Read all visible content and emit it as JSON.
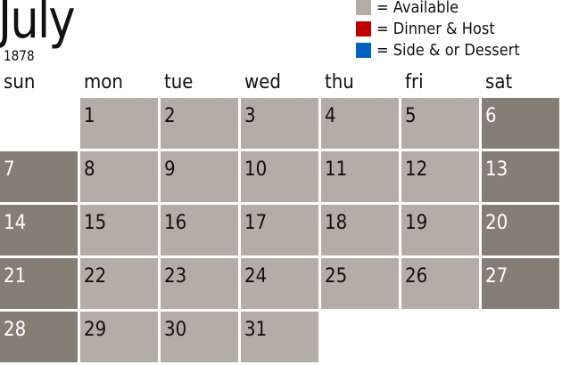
{
  "title": {
    "month": "July",
    "year": "1878"
  },
  "colors": {
    "available": "#b4ada5",
    "weekend": "#857e75",
    "dinner_host": "#c00000",
    "side_dessert": "#0060c0"
  },
  "legend": [
    {
      "label": "= Available",
      "color": "#b4ada5"
    },
    {
      "label": "= Dinner & Host",
      "color": "#c00000"
    },
    {
      "label": "= Side & or Dessert",
      "color": "#0060c0"
    }
  ],
  "weekdays": [
    "sun",
    "mon",
    "tue",
    "wed",
    "thu",
    "fri",
    "sat"
  ],
  "first_weekday": 1,
  "days_in_month": 31
}
